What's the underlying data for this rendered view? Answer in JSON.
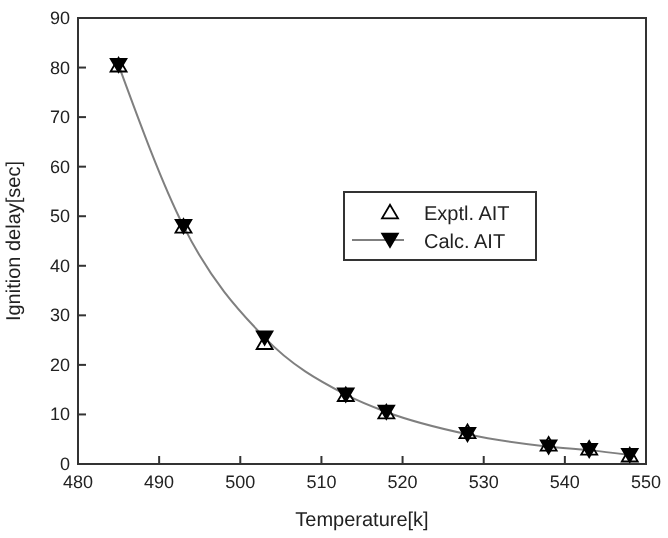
{
  "chart_data": {
    "type": "line",
    "xlabel": "Temperature[k]",
    "ylabel": "Ignition delay[sec]",
    "x": [
      485,
      493,
      503,
      513,
      518,
      528,
      538,
      543,
      548
    ],
    "series": [
      {
        "name": "Exptl. AIT",
        "type": "scatter",
        "color": "#000000",
        "values": [
          80.5,
          48,
          24.5,
          14,
          10.5,
          6.5,
          4,
          3.2,
          1.8
        ]
      },
      {
        "name": "Calc. AIT",
        "color": "#000000",
        "values": [
          80.5,
          48,
          25.5,
          14,
          10.5,
          6,
          3.5,
          2.8,
          1.8
        ]
      }
    ],
    "xlim": [
      480,
      550
    ],
    "xticks": [
      480,
      490,
      500,
      510,
      520,
      530,
      540,
      550
    ],
    "ylim": [
      0,
      90
    ],
    "yticks": [
      0,
      10,
      20,
      30,
      40,
      50,
      60,
      70,
      80,
      90
    ],
    "marker": "triangle",
    "legend": "right",
    "grid": false
  }
}
